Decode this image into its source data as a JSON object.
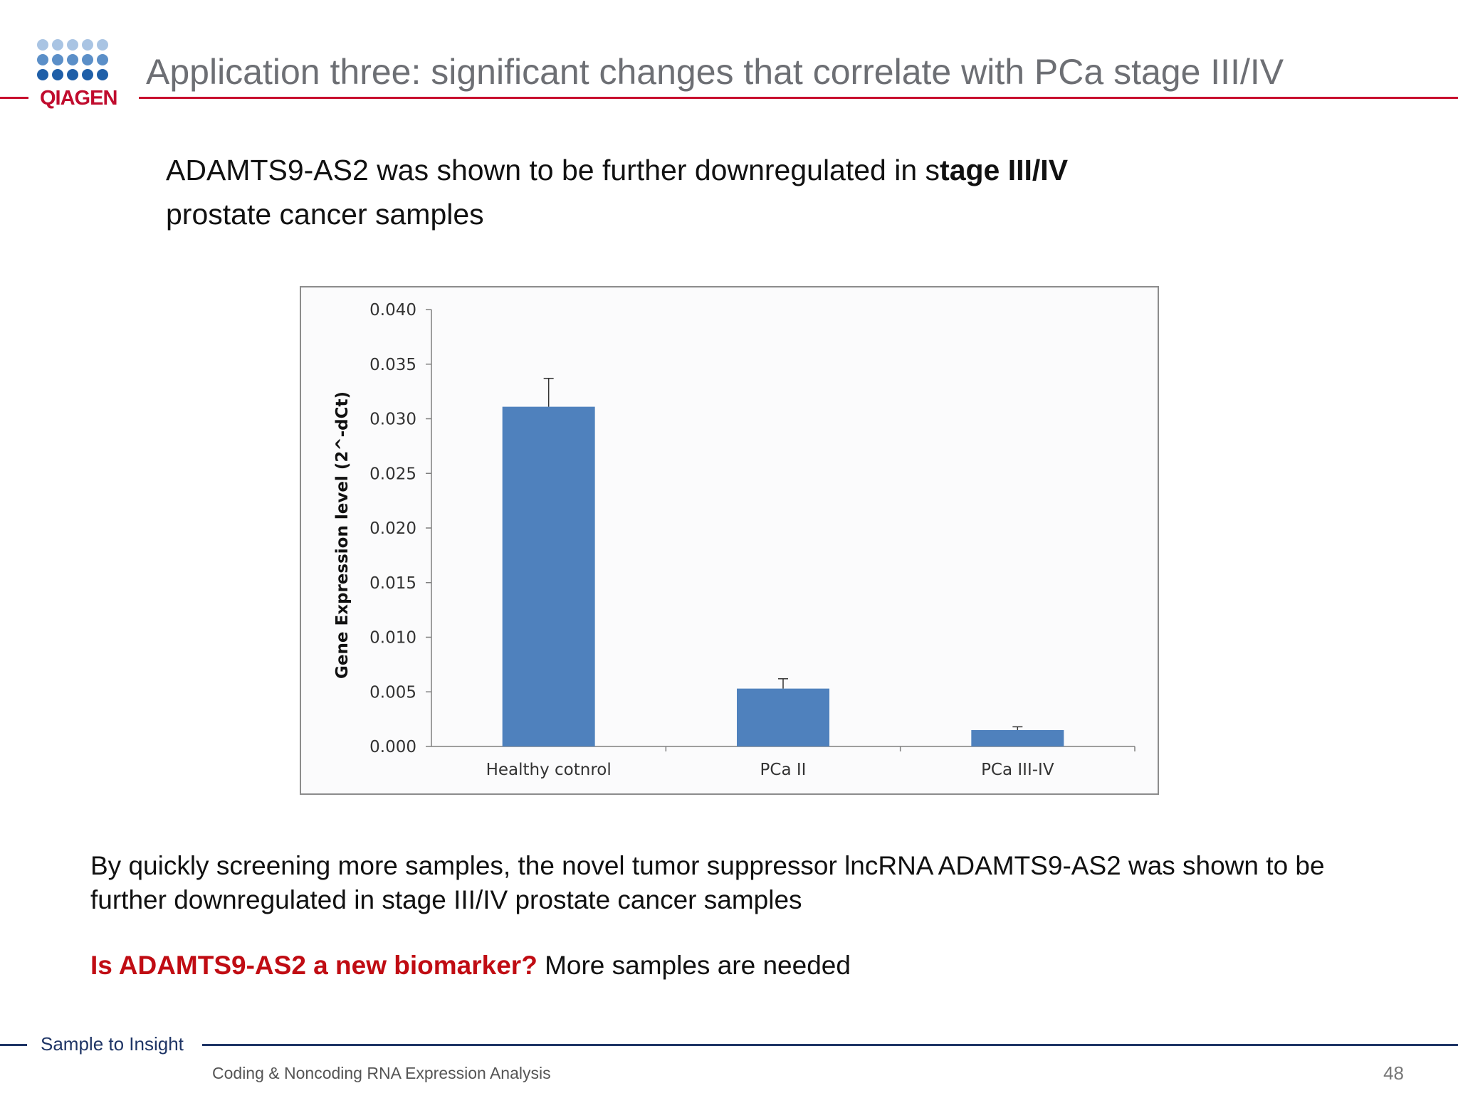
{
  "logo": {
    "text": "QIAGEN",
    "dot_colors": [
      "#a9c4e3",
      "#5b8fc8",
      "#1f5fa8"
    ]
  },
  "header": {
    "title": "Application three: significant changes that correlate with PCa stage III/IV"
  },
  "intro": {
    "part1": "ADAMTS9-AS2 was shown to be further downregulated in s",
    "part_bold": "tage III/IV",
    "part2": "prostate cancer samples"
  },
  "chart_data": {
    "type": "bar",
    "categories": [
      "Healthy cotnrol",
      "PCa II",
      "PCa III-IV"
    ],
    "values": [
      0.0311,
      0.0053,
      0.0015
    ],
    "error": [
      0.0026,
      0.0009,
      0.0003
    ],
    "ylabel": "Gene Expression level (2^-dCt)",
    "xlabel": "",
    "ylim": [
      0,
      0.04
    ],
    "yticks": [
      "0.000",
      "0.005",
      "0.010",
      "0.015",
      "0.020",
      "0.025",
      "0.030",
      "0.035",
      "0.040"
    ],
    "bar_color": "#4f81bd",
    "grid": false
  },
  "body": {
    "paragraph": "By quickly screening more samples, the novel tumor suppressor lncRNA ADAMTS9-AS2 was shown to be further downregulated in stage III/IV prostate cancer samples",
    "question": "Is ADAMTS9-AS2 a new biomarker?",
    "answer": " More samples are needed"
  },
  "footer": {
    "tagline": "Sample to Insight",
    "title": "Coding & Noncoding RNA Expression Analysis",
    "page": "48"
  }
}
